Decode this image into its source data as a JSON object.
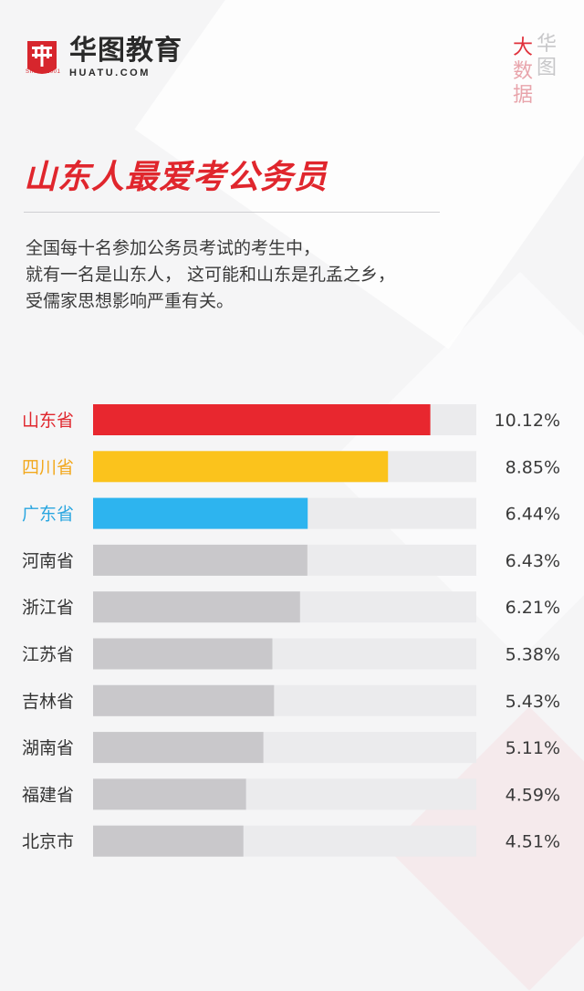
{
  "header": {
    "logo_name": "华图教育",
    "logo_url": "HUATU.COM",
    "logo_since": "SINCE 2001",
    "badge_chars": [
      "大",
      "华",
      "数",
      "图",
      "据"
    ]
  },
  "title": "山东人最爱考公务员",
  "intro_lines": [
    "全国每十名参加公务员考试的考生中，",
    "就有一名是山东人， 这可能和山东是孔孟之乡，",
    "受儒家思想影响严重有关。"
  ],
  "colors": {
    "brand_red": "#e0262d",
    "highlight_1": "#e8272f",
    "highlight_2": "#fbc31c",
    "highlight_3": "#2db4ef",
    "bar_default": "#c9c8cb",
    "track": "#ebebed"
  },
  "chart_data": {
    "type": "bar",
    "orientation": "horizontal",
    "categories": [
      "山东省",
      "四川省",
      "广东省",
      "河南省",
      "浙江省",
      "江苏省",
      "吉林省",
      "湖南省",
      "福建省",
      "北京市"
    ],
    "values": [
      10.12,
      8.85,
      6.44,
      6.43,
      6.21,
      5.38,
      5.43,
      5.11,
      4.59,
      4.51
    ],
    "value_labels": [
      "10.12%",
      "8.85%",
      "6.44%",
      "6.43%",
      "6.21%",
      "5.38%",
      "5.43%",
      "5.11%",
      "4.59%",
      "4.51%"
    ],
    "bar_colors": [
      "#e8272f",
      "#fbc31c",
      "#2db4ef",
      "#c9c8cb",
      "#c9c8cb",
      "#c9c8cb",
      "#c9c8cb",
      "#c9c8cb",
      "#c9c8cb",
      "#c9c8cb"
    ],
    "label_colors": [
      "#e0262d",
      "#f2a81d",
      "#2aa6e0",
      "#333333",
      "#333333",
      "#333333",
      "#333333",
      "#333333",
      "#333333",
      "#333333"
    ],
    "xlim": [
      0,
      11.5
    ],
    "grid": false,
    "legend": "none"
  }
}
